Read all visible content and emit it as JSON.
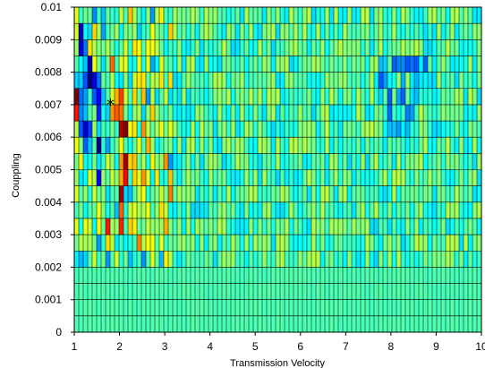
{
  "chart_data": {
    "type": "heatmap",
    "title": "",
    "xlabel": "Transmission Velocity",
    "ylabel": "Couppling",
    "xlim": [
      1,
      10
    ],
    "ylim": [
      0,
      0.01
    ],
    "x_ticks": [
      1,
      2,
      3,
      4,
      5,
      6,
      7,
      8,
      9,
      10
    ],
    "x_tick_labels": [
      "1",
      "2",
      "3",
      "4",
      "5",
      "6",
      "7",
      "8",
      "9",
      "10"
    ],
    "y_ticks": [
      0,
      0.001,
      0.002,
      0.003,
      0.004,
      0.005,
      0.006,
      0.007,
      0.008,
      0.009,
      0.01
    ],
    "y_tick_labels": [
      "0",
      "0.001",
      "0.002",
      "0.003",
      "0.004",
      "0.005",
      "0.006",
      "0.007",
      "0.008",
      "0.009",
      "0.01"
    ],
    "grid": {
      "x_bins": 91,
      "y_bins": 20,
      "x_step": 0.1,
      "y_step": 0.0005
    },
    "colormap": [
      "#00007f",
      "#0000ff",
      "#007fff",
      "#00ffff",
      "#7fff7f",
      "#ffff00",
      "#ff7f00",
      "#ff0000",
      "#7f0000"
    ],
    "background_level": 0.45,
    "grid_color": "#000000",
    "features": [
      {
        "x": [
          1.0,
          1.1
        ],
        "y": [
          0.0065,
          0.0075
        ],
        "level": 0.92
      },
      {
        "x": [
          1.1,
          1.3
        ],
        "y": [
          0.0055,
          0.0095
        ],
        "level": 0.25
      },
      {
        "x": [
          1.3,
          1.5
        ],
        "y": [
          0.007,
          0.0085
        ],
        "level": 0.05
      },
      {
        "x": [
          1.3,
          1.5
        ],
        "y": [
          0.0055,
          0.0065
        ],
        "level": 0.15
      },
      {
        "x": [
          1.5,
          1.6
        ],
        "y": [
          0.0045,
          0.009
        ],
        "level": 0.2
      },
      {
        "x": [
          1.7,
          1.8
        ],
        "y": [
          0.0025,
          0.004
        ],
        "level": 0.75
      },
      {
        "x": [
          1.8,
          2.0
        ],
        "y": [
          0.0065,
          0.0085
        ],
        "level": 0.7
      },
      {
        "x": [
          2.0,
          2.1
        ],
        "y": [
          0.003,
          0.0075
        ],
        "level": 0.8
      },
      {
        "x": [
          2.1,
          2.2
        ],
        "y": [
          0.0045,
          0.0065
        ],
        "level": 0.95
      },
      {
        "x": [
          2.2,
          2.3
        ],
        "y": [
          0.0065,
          0.007
        ],
        "level": 0.9
      },
      {
        "x": [
          2.3,
          2.6
        ],
        "y": [
          0.0025,
          0.008
        ],
        "level": 0.6
      },
      {
        "x": [
          2.6,
          3.2
        ],
        "y": [
          0.0025,
          0.006
        ],
        "level": 0.55
      },
      {
        "x": [
          7.6,
          8.8
        ],
        "y": [
          0.007,
          0.0085
        ],
        "level": 0.3
      },
      {
        "x": [
          8.0,
          8.4
        ],
        "y": [
          0.008,
          0.0085
        ],
        "level": 0.2
      },
      {
        "x": [
          7.8,
          8.6
        ],
        "y": [
          0.006,
          0.007
        ],
        "level": 0.33
      }
    ],
    "annotations": [
      {
        "text": "*",
        "x": 1.8,
        "y": 0.00705
      }
    ]
  }
}
